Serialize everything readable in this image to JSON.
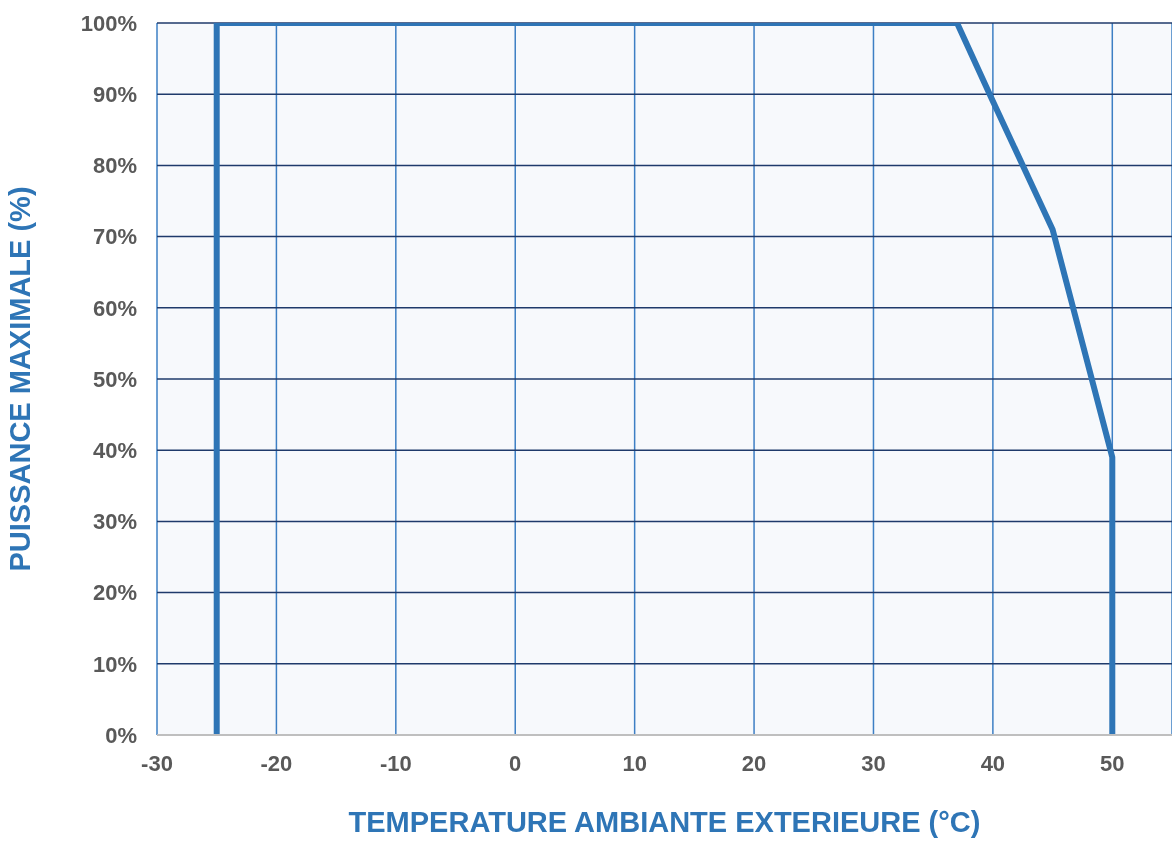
{
  "chart_data": {
    "type": "line",
    "xlabel": "TEMPERATURE AMBIANTE EXTERIEURE (°C)",
    "ylabel": "PUISSANCE MAXIMALE (%)",
    "x": [
      -25,
      -25,
      37,
      40,
      45,
      50,
      50
    ],
    "series": [
      {
        "color": "#2e75b6",
        "values": [
          0,
          100,
          100,
          89,
          71,
          39,
          0
        ]
      }
    ],
    "xlim": [
      -30,
      55
    ],
    "xticks": [
      -30,
      -20,
      -10,
      0,
      10,
      20,
      30,
      40,
      50
    ],
    "ylim": [
      0,
      100
    ],
    "yticks": [
      {
        "value": 0,
        "label": "0%"
      },
      {
        "value": 10,
        "label": "10%"
      },
      {
        "value": 20,
        "label": "20%"
      },
      {
        "value": 30,
        "label": "30%"
      },
      {
        "value": 40,
        "label": "40%"
      },
      {
        "value": 50,
        "label": "50%"
      },
      {
        "value": 60,
        "label": "60%"
      },
      {
        "value": 70,
        "label": "70%"
      },
      {
        "value": 80,
        "label": "80%"
      },
      {
        "value": 90,
        "label": "90%"
      },
      {
        "value": 100,
        "label": "100%"
      }
    ],
    "grid": true,
    "marker": "none",
    "line_style": "solid",
    "legend": false
  }
}
